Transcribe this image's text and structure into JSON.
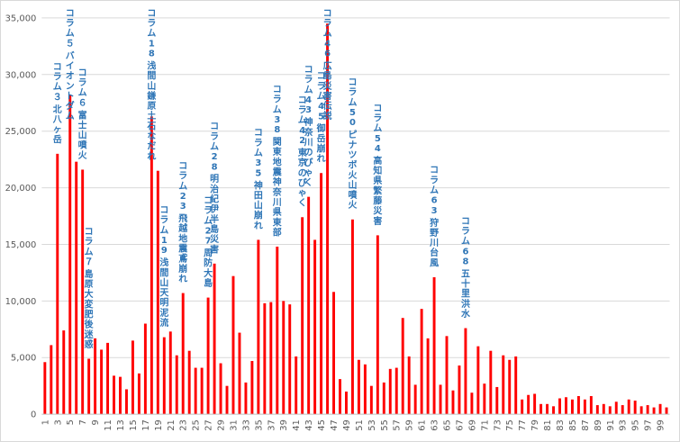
{
  "chart_data": {
    "type": "bar",
    "title": "",
    "xlabel": "",
    "ylabel": "",
    "ylim": [
      0,
      35000
    ],
    "y_ticks": [
      "0",
      "5,000",
      "10,000",
      "15,000",
      "20,000",
      "25,000",
      "30,000",
      "35,000"
    ],
    "y_tick_values": [
      0,
      5000,
      10000,
      15000,
      20000,
      25000,
      30000,
      35000
    ],
    "x_tick_labels": [
      "1",
      "3",
      "5",
      "7",
      "9",
      "11",
      "13",
      "15",
      "17",
      "19",
      "21",
      "23",
      "25",
      "27",
      "29",
      "31",
      "33",
      "35",
      "37",
      "39",
      "41",
      "43",
      "45",
      "47",
      "49",
      "51",
      "53",
      "55",
      "57",
      "59",
      "61",
      "63",
      "65",
      "67",
      "69",
      "71",
      "73",
      "75",
      "77",
      "79",
      "81",
      "83",
      "85",
      "87",
      "89",
      "91",
      "93",
      "95",
      "97",
      "99"
    ],
    "grid": true,
    "bar_color": "#ff0000",
    "annotation_color": "#2e75b6",
    "categories": [
      1,
      2,
      3,
      4,
      5,
      6,
      7,
      8,
      9,
      10,
      11,
      12,
      13,
      14,
      15,
      16,
      17,
      18,
      19,
      20,
      21,
      22,
      23,
      24,
      25,
      26,
      27,
      28,
      29,
      30,
      31,
      32,
      33,
      34,
      35,
      36,
      37,
      38,
      39,
      40,
      41,
      42,
      43,
      44,
      45,
      46,
      47,
      48,
      49,
      50,
      51,
      52,
      53,
      54,
      55,
      56,
      57,
      58,
      59,
      60,
      61,
      62,
      63,
      64,
      65,
      66,
      67,
      68,
      69,
      70,
      71,
      72,
      73,
      74,
      75,
      76,
      77,
      78,
      79,
      80,
      81,
      82,
      83,
      84,
      85,
      86,
      87,
      88,
      89,
      90,
      91,
      92,
      93,
      94,
      95,
      96,
      97,
      98,
      99,
      100
    ],
    "values": [
      4600,
      6100,
      23000,
      7400,
      28200,
      22300,
      21600,
      4900,
      6700,
      5700,
      6300,
      3400,
      3300,
      2200,
      6500,
      3600,
      8000,
      26300,
      21500,
      6800,
      7300,
      5200,
      10700,
      5600,
      4100,
      4100,
      10300,
      13300,
      4500,
      2500,
      12200,
      7200,
      2800,
      4700,
      15400,
      9800,
      9900,
      14800,
      10000,
      9700,
      5100,
      17400,
      19200,
      15400,
      21300,
      34500,
      10800,
      3100,
      2000,
      17200,
      4800,
      4400,
      2500,
      15800,
      2800,
      4000,
      4100,
      8500,
      5100,
      2600,
      9300,
      6700,
      12100,
      2600,
      6900,
      2100,
      4300,
      7600,
      1900,
      6000,
      2700,
      5600,
      2400,
      5200,
      4800,
      5100,
      1300,
      1700,
      1800,
      900,
      900,
      700,
      1400,
      1500,
      1300,
      1600,
      1300,
      1600,
      800,
      900,
      700,
      1100,
      800,
      1300,
      1200,
      700,
      800,
      600,
      900,
      600
    ],
    "annotations": [
      {
        "category": 3,
        "lines": [
          "コラム３",
          "北八ヶ岳"
        ]
      },
      {
        "category": 5,
        "lines": [
          "コラム５",
          "バイオントダム"
        ]
      },
      {
        "category": 7,
        "lines": [
          "コラム６",
          "富士山噴火"
        ]
      },
      {
        "category": 8,
        "lines": [
          "コラム７",
          "島原大変肥後迷惑"
        ]
      },
      {
        "category": 18,
        "lines": [
          "コラム18",
          "浅間山鎌原土石なだれ"
        ]
      },
      {
        "category": 20,
        "lines": [
          "コラム19",
          "浅間山天明泥流"
        ]
      },
      {
        "category": 23,
        "lines": [
          "コラム23",
          "飛越地震鳶崩れ"
        ]
      },
      {
        "category": 27,
        "lines": [
          "コラム27",
          "周防大島"
        ]
      },
      {
        "category": 28,
        "lines": [
          "コラム28",
          "明治紀伊半島災害"
        ]
      },
      {
        "category": 35,
        "lines": [
          "コラム35",
          "神田山崩れ"
        ]
      },
      {
        "category": 38,
        "lines": [
          "コラム38",
          "関東地震神奈川県東部"
        ]
      },
      {
        "category": 42,
        "lines": [
          "コラム42",
          "東京のびゃく"
        ]
      },
      {
        "category": 43,
        "lines": [
          "コラム43",
          "神奈川のびゃく"
        ]
      },
      {
        "category": 45,
        "lines": [
          "コラム45",
          "御岳崩れ"
        ]
      },
      {
        "category": 46,
        "lines": [
          "コラム46",
          "広島災害伝説"
        ]
      },
      {
        "category": 50,
        "lines": [
          "コラム50",
          "ピナツボ火山噴火"
        ]
      },
      {
        "category": 54,
        "lines": [
          "コラム54",
          "高知県繁藤災害"
        ]
      },
      {
        "category": 63,
        "lines": [
          "コラム63",
          "狩野川台風"
        ]
      },
      {
        "category": 68,
        "lines": [
          "コラム68",
          "五十里洪水"
        ]
      }
    ]
  }
}
